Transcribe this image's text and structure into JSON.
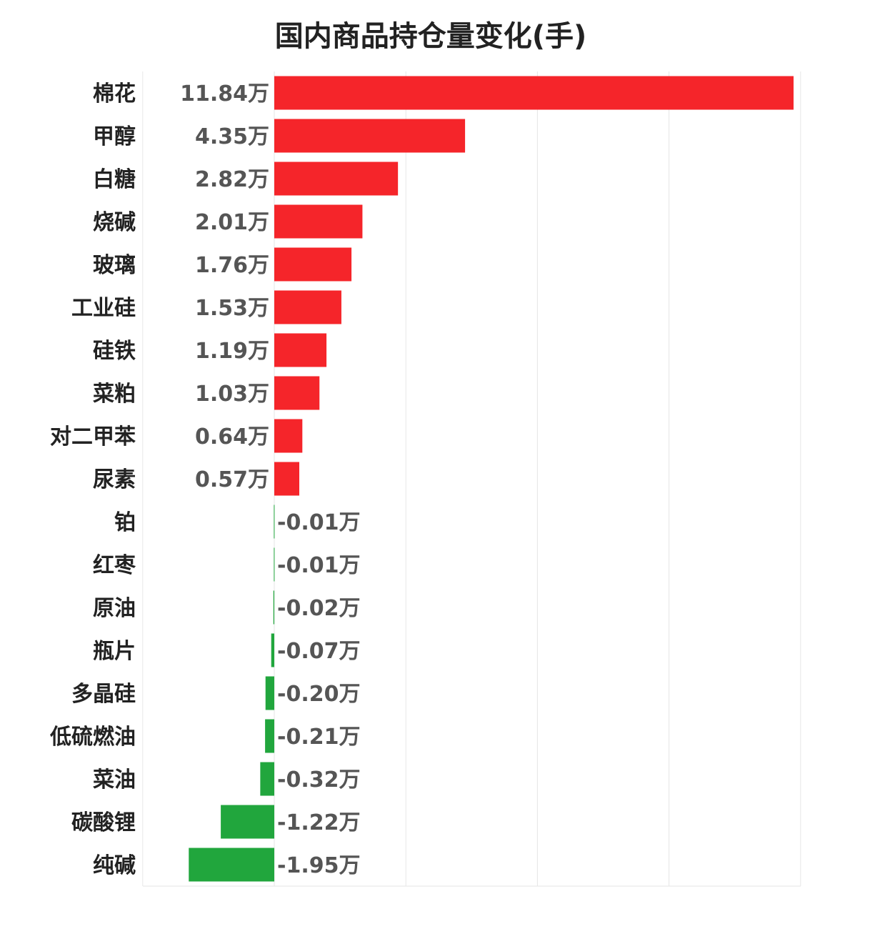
{
  "chart_data": {
    "type": "bar",
    "orientation": "horizontal",
    "title": "国内商品持仓量变化(手)",
    "xlabel": "",
    "ylabel": "",
    "unit_suffix": "万",
    "xlim": [
      -3,
      15
    ],
    "grid": true,
    "legend": "none",
    "colors": {
      "positive": "#f5252a",
      "negative": "#21a63d"
    },
    "categories": [
      "棉花",
      "甲醇",
      "白糖",
      "烧碱",
      "玻璃",
      "工业硅",
      "硅铁",
      "菜粕",
      "对二甲苯",
      "尿素",
      "铂",
      "红枣",
      "原油",
      "瓶片",
      "多晶硅",
      "低硫燃油",
      "菜油",
      "碳酸锂",
      "纯碱"
    ],
    "values": [
      11.84,
      4.35,
      2.82,
      2.01,
      1.76,
      1.53,
      1.19,
      1.03,
      0.64,
      0.57,
      -0.01,
      -0.01,
      -0.02,
      -0.07,
      -0.2,
      -0.21,
      -0.32,
      -1.22,
      -1.95
    ],
    "value_labels": [
      "11.84万",
      "4.35万",
      "2.82万",
      "2.01万",
      "1.76万",
      "1.53万",
      "1.19万",
      "1.03万",
      "0.64万",
      "0.57万",
      "-0.01万",
      "-0.01万",
      "-0.02万",
      "-0.07万",
      "-0.20万",
      "-0.21万",
      "-0.32万",
      "-1.22万",
      "-1.95万"
    ]
  }
}
